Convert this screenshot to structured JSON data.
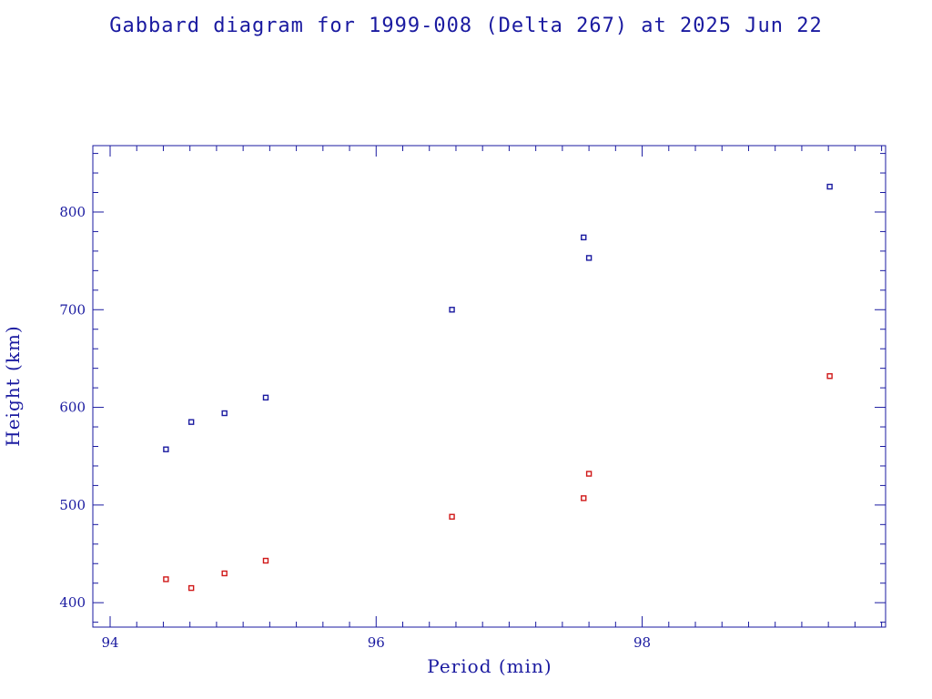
{
  "chart_data": {
    "type": "scatter",
    "title": "Gabbard diagram for 1999-008 (Delta 267) at 2025 Jun 22",
    "xlabel": "Period (min)",
    "ylabel": "Height (km)",
    "xlim": [
      93.87,
      99.83
    ],
    "ylim": [
      375,
      868
    ],
    "x_ticks": [
      94,
      96,
      98
    ],
    "y_ticks": [
      400,
      500,
      600,
      700,
      800
    ],
    "grid": false,
    "series": [
      {
        "color": "#1a1aa0",
        "x": [
          94.42,
          94.61,
          94.86,
          95.17,
          96.57,
          97.56,
          97.6,
          99.41
        ],
        "y": [
          557,
          585,
          594,
          610,
          700,
          774,
          753,
          826
        ]
      },
      {
        "color": "#d01818",
        "x": [
          94.42,
          94.61,
          94.86,
          95.17,
          96.57,
          97.56,
          97.6,
          99.41
        ],
        "y": [
          424,
          415,
          430,
          443,
          488,
          507,
          532,
          632
        ]
      }
    ]
  }
}
